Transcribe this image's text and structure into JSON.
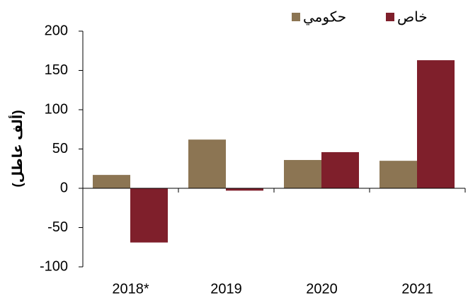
{
  "chart_data": {
    "type": "bar",
    "y_label": "(ألف عاطل)",
    "categories": [
      "2018*",
      "2019",
      "2020",
      "2021"
    ],
    "series": [
      {
        "name": "حكومي",
        "color": "#8c7553",
        "values": [
          17,
          62,
          36,
          35
        ]
      },
      {
        "name": "خاص",
        "color": "#7f1f2b",
        "values": [
          -69,
          -3,
          46,
          163
        ]
      }
    ],
    "ylim": [
      -100,
      200
    ],
    "yticks": [
      -100,
      -50,
      0,
      50,
      100,
      150,
      200
    ]
  }
}
